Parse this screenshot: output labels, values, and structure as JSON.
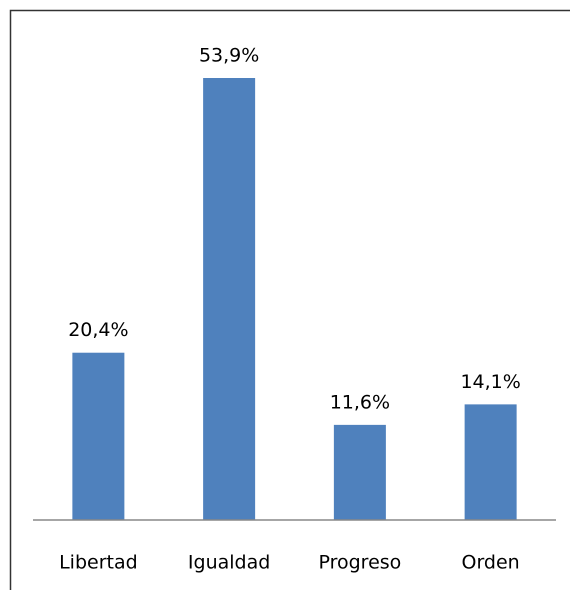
{
  "chart_data": {
    "type": "bar",
    "categories": [
      "Libertad",
      "Igualdad",
      "Progreso",
      "Orden"
    ],
    "values": [
      20.4,
      53.9,
      11.6,
      14.1
    ],
    "value_labels": [
      "20,4%",
      "53,9%",
      "11,6%",
      "14,1%"
    ],
    "color": "#4f81bd"
  }
}
